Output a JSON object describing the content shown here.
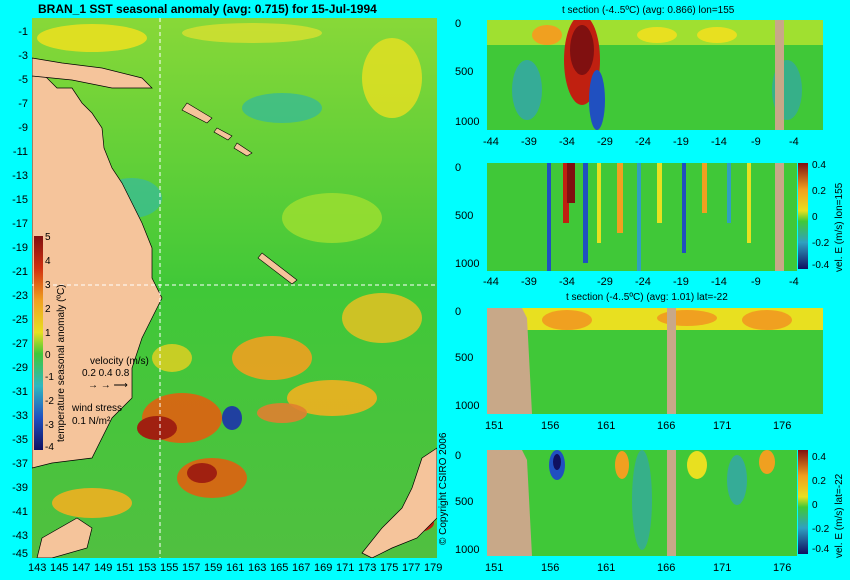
{
  "main_title": "BRAN_1 SST seasonal anomaly (avg: 0.715) for 15-Jul-1994",
  "map": {
    "lat_ticks": [
      "-1",
      "-3",
      "-5",
      "-7",
      "-9",
      "-11",
      "-13",
      "-15",
      "-17",
      "-19",
      "-21",
      "-23",
      "-25",
      "-27",
      "-29",
      "-31",
      "-33",
      "-35",
      "-37",
      "-39",
      "-41",
      "-43",
      "-45"
    ],
    "lon_ticks": [
      "143",
      "145",
      "147",
      "149",
      "151",
      "153",
      "155",
      "157",
      "159",
      "161",
      "163",
      "165",
      "167",
      "169",
      "171",
      "173",
      "175",
      "177",
      "179"
    ],
    "colorbar_ticks": [
      "5",
      "4",
      "3",
      "2",
      "1",
      "0",
      "-1",
      "-2",
      "-3",
      "-4"
    ],
    "colorbar_label": "temperature seasonal anomaly (ºC)",
    "velocity_title": "velocity (m/s)",
    "velocity_values": "0.2 0.4 0.8",
    "wind_title": "wind stress",
    "wind_value": "0.1 N/m²",
    "copyright": "© Copyright CSIRO 2006"
  },
  "panels": [
    {
      "title": "t section (-4..5ºC) (avg: 0.866) lon=155",
      "y_ticks": [
        "0",
        "500",
        "1000"
      ],
      "x_ticks": [
        "-44",
        "-39",
        "-34",
        "-29",
        "-24",
        "-19",
        "-14",
        "-9",
        "-4"
      ]
    },
    {
      "title": "",
      "y_ticks": [
        "0",
        "500",
        "1000"
      ],
      "x_ticks": [
        "-44",
        "-39",
        "-34",
        "-29",
        "-24",
        "-19",
        "-14",
        "-9",
        "-4"
      ],
      "cb_ticks": [
        "0.4",
        "0.2",
        "0",
        "-0.2",
        "-0.4"
      ],
      "cb_label": "vel. E (m/s) lon=155"
    },
    {
      "title": "t section (-4..5ºC) (avg: 1.01) lat=-22",
      "y_ticks": [
        "0",
        "500",
        "1000"
      ],
      "x_ticks": [
        "151",
        "156",
        "161",
        "166",
        "171",
        "176"
      ]
    },
    {
      "title": "",
      "y_ticks": [
        "0",
        "500",
        "1000"
      ],
      "x_ticks": [
        "151",
        "156",
        "161",
        "166",
        "171",
        "176"
      ],
      "cb_ticks": [
        "0.4",
        "0.2",
        "0",
        "-0.2",
        "-0.4"
      ],
      "cb_label": "vel. E (m/s) lat=-22"
    }
  ],
  "colors": {
    "background": "#00ffff",
    "land": "#f5c49b",
    "section_land": "#c8a888",
    "ocean": "#3cc83c"
  }
}
